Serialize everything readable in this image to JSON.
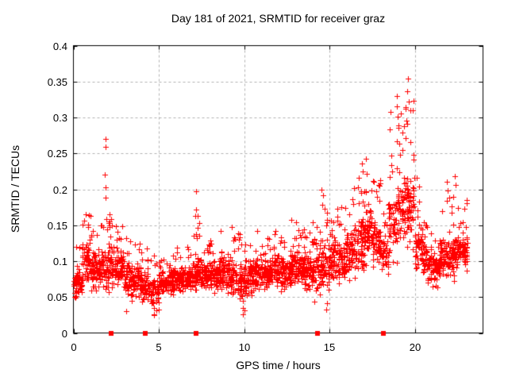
{
  "chart_data": {
    "type": "scatter",
    "title": "Day 181 of 2021, SRMTID for receiver graz",
    "xlabel": "GPS time / hours",
    "ylabel": "SRMTID / TECUs",
    "xlim": [
      0,
      24
    ],
    "ylim": [
      0,
      0.4
    ],
    "xticks": [
      0,
      5,
      10,
      15,
      20
    ],
    "xtick_labels": [
      "0",
      "5",
      "10",
      "15",
      "20"
    ],
    "yticks": [
      0,
      0.05,
      0.1,
      0.15,
      0.2,
      0.25,
      0.3,
      0.35,
      0.4
    ],
    "ytick_labels": [
      "0",
      "0.05",
      "0.1",
      "0.15",
      "0.2",
      "0.25",
      "0.3",
      "0.35",
      "0.4"
    ],
    "grid": true,
    "legend": "none",
    "marker": "plus",
    "marker_color": "#ff0000",
    "grid_color": "#b0b0b0",
    "frame_color": "#000000",
    "background_color": "#ffffff",
    "seed": 181,
    "gap_markers": {
      "marker": "filled-square",
      "color": "#ff0000",
      "y": 0,
      "x": [
        2.21,
        4.21,
        7.18,
        14.29,
        18.15
      ]
    },
    "envelope_bins_format": [
      "t_start",
      "t_end",
      "y_low",
      "y_high",
      "y_max",
      "n_points"
    ],
    "envelope_bins": [
      [
        0.0,
        0.5,
        0.03,
        0.11,
        0.13,
        52
      ],
      [
        0.5,
        1.0,
        0.055,
        0.15,
        0.175,
        60
      ],
      [
        1.0,
        1.5,
        0.05,
        0.13,
        0.155,
        60
      ],
      [
        1.5,
        2.0,
        0.05,
        0.135,
        0.16,
        58
      ],
      [
        2.0,
        2.5,
        0.05,
        0.14,
        0.165,
        60
      ],
      [
        2.5,
        3.0,
        0.05,
        0.13,
        0.16,
        60
      ],
      [
        3.0,
        3.5,
        0.035,
        0.11,
        0.135,
        55
      ],
      [
        3.5,
        4.0,
        0.04,
        0.11,
        0.125,
        55
      ],
      [
        4.0,
        4.5,
        0.03,
        0.1,
        0.12,
        52
      ],
      [
        4.5,
        5.0,
        0.025,
        0.09,
        0.11,
        50
      ],
      [
        5.0,
        5.5,
        0.045,
        0.09,
        0.105,
        55
      ],
      [
        5.5,
        6.0,
        0.045,
        0.1,
        0.11,
        58
      ],
      [
        6.0,
        6.5,
        0.05,
        0.1,
        0.12,
        60
      ],
      [
        6.5,
        7.0,
        0.05,
        0.105,
        0.125,
        60
      ],
      [
        7.0,
        7.5,
        0.05,
        0.12,
        0.17,
        60
      ],
      [
        7.5,
        8.0,
        0.05,
        0.11,
        0.13,
        60
      ],
      [
        8.0,
        8.5,
        0.05,
        0.11,
        0.14,
        60
      ],
      [
        8.5,
        9.0,
        0.05,
        0.12,
        0.145,
        60
      ],
      [
        9.0,
        9.5,
        0.04,
        0.12,
        0.15,
        60
      ],
      [
        9.5,
        10.0,
        0.03,
        0.11,
        0.14,
        56
      ],
      [
        10.0,
        10.5,
        0.04,
        0.12,
        0.16,
        60
      ],
      [
        10.5,
        11.0,
        0.05,
        0.12,
        0.15,
        60
      ],
      [
        11.0,
        11.5,
        0.05,
        0.12,
        0.145,
        60
      ],
      [
        11.5,
        12.0,
        0.05,
        0.13,
        0.15,
        60
      ],
      [
        12.0,
        12.5,
        0.05,
        0.12,
        0.15,
        60
      ],
      [
        12.5,
        13.0,
        0.05,
        0.12,
        0.16,
        60
      ],
      [
        13.0,
        13.5,
        0.05,
        0.13,
        0.165,
        60
      ],
      [
        13.5,
        14.0,
        0.05,
        0.13,
        0.165,
        60
      ],
      [
        14.0,
        14.5,
        0.04,
        0.14,
        0.175,
        55
      ],
      [
        14.5,
        15.0,
        0.045,
        0.15,
        0.205,
        60
      ],
      [
        15.0,
        15.5,
        0.06,
        0.15,
        0.19,
        60
      ],
      [
        15.5,
        16.0,
        0.06,
        0.14,
        0.175,
        60
      ],
      [
        16.0,
        16.5,
        0.07,
        0.16,
        0.21,
        62
      ],
      [
        16.5,
        17.0,
        0.07,
        0.18,
        0.235,
        65
      ],
      [
        17.0,
        17.5,
        0.08,
        0.195,
        0.245,
        65
      ],
      [
        17.5,
        18.0,
        0.08,
        0.18,
        0.22,
        60
      ],
      [
        18.0,
        18.5,
        0.07,
        0.15,
        0.19,
        48
      ],
      [
        18.5,
        19.0,
        0.08,
        0.215,
        0.31,
        55
      ],
      [
        19.0,
        19.5,
        0.1,
        0.24,
        0.33,
        60
      ],
      [
        19.5,
        20.0,
        0.1,
        0.24,
        0.345,
        65
      ],
      [
        20.0,
        20.5,
        0.08,
        0.17,
        0.215,
        60
      ],
      [
        20.5,
        21.0,
        0.07,
        0.13,
        0.155,
        60
      ],
      [
        21.0,
        21.5,
        0.06,
        0.125,
        0.145,
        60
      ],
      [
        21.5,
        22.0,
        0.07,
        0.15,
        0.2,
        62
      ],
      [
        22.0,
        22.5,
        0.07,
        0.15,
        0.215,
        62
      ],
      [
        22.5,
        23.1,
        0.08,
        0.145,
        0.185,
        72
      ]
    ],
    "outlier_points": [
      [
        1.86,
        0.22
      ],
      [
        1.87,
        0.27
      ],
      [
        1.88,
        0.259
      ],
      [
        1.87,
        0.203
      ],
      [
        1.88,
        0.188
      ],
      [
        2.1,
        0.155
      ],
      [
        2.12,
        0.148
      ],
      [
        7.15,
        0.163
      ],
      [
        7.18,
        0.197
      ],
      [
        7.2,
        0.172
      ],
      [
        3.1,
        0.03
      ],
      [
        4.7,
        0.026
      ],
      [
        4.85,
        0.031
      ],
      [
        9.95,
        0.026
      ],
      [
        10.02,
        0.031
      ],
      [
        14.55,
        0.2
      ],
      [
        14.62,
        0.192
      ],
      [
        14.8,
        0.033
      ],
      [
        14.85,
        0.041
      ],
      [
        16.9,
        0.236
      ],
      [
        17.15,
        0.243
      ],
      [
        18.95,
        0.33
      ],
      [
        18.97,
        0.316
      ],
      [
        19.02,
        0.301
      ],
      [
        19.06,
        0.286
      ],
      [
        19.45,
        0.312
      ],
      [
        19.5,
        0.296
      ],
      [
        19.55,
        0.336
      ],
      [
        19.58,
        0.291
      ],
      [
        19.62,
        0.354
      ],
      [
        19.65,
        0.322
      ],
      [
        19.48,
        0.271
      ],
      [
        19.07,
        0.263
      ],
      [
        19.3,
        0.255
      ],
      [
        20.1,
        0.216
      ],
      [
        21.9,
        0.211
      ],
      [
        21.95,
        0.198
      ],
      [
        22.35,
        0.218
      ],
      [
        22.4,
        0.206
      ]
    ]
  }
}
